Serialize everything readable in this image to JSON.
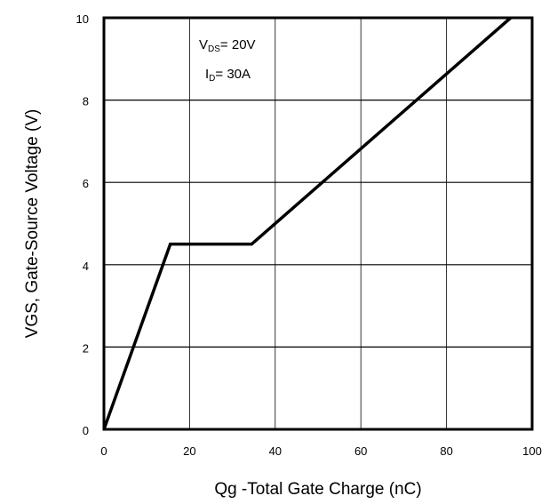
{
  "chart_data": {
    "type": "line",
    "title": "",
    "xlabel": "Qg -Total Gate Charge (nC)",
    "ylabel": "VGS, Gate-Source Voltage (V)",
    "xlim": [
      0,
      100
    ],
    "ylim": [
      0,
      10
    ],
    "xticks": [
      0,
      20,
      40,
      60,
      80,
      100
    ],
    "yticks": [
      0,
      2,
      4,
      6,
      8,
      10
    ],
    "grid": true,
    "series": [
      {
        "x": [
          0,
          15.5,
          34.5,
          95
        ],
        "y": [
          0,
          4.5,
          4.5,
          10
        ]
      }
    ],
    "annotations": [
      {
        "main": "V",
        "sub": "DS",
        "suffix": "= 20V"
      },
      {
        "main": "I",
        "sub": "D",
        "suffix": "= 30A"
      }
    ],
    "colors": {
      "line": "#000000",
      "grid": "#000000",
      "frame": "#000000"
    }
  }
}
